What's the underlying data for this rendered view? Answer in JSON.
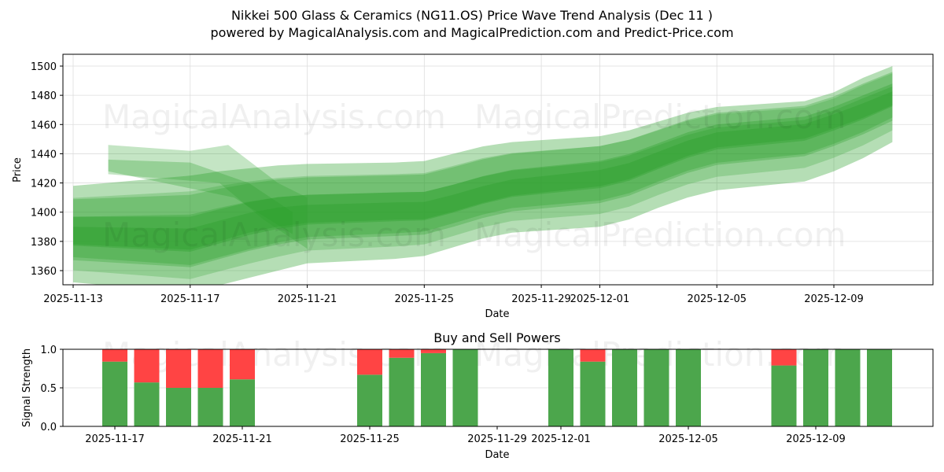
{
  "header": {
    "title": "Nikkei 500 Glass & Ceramics (NG11.OS) Price Wave Trend Analysis (Dec 11 )",
    "subtitle": "powered by MagicalAnalysis.com and MagicalPrediction.com and Predict-Price.com"
  },
  "watermarks": [
    "MagicalAnalysis.com",
    "MagicalPrediction.com"
  ],
  "colors": {
    "band": "#2ca02c",
    "buy": "#4ca64c",
    "sell": "#ff4444",
    "grid": "#dddddd"
  },
  "chart_data": [
    {
      "type": "area",
      "title": "Price Wave Trend Bands",
      "xlabel": "Date",
      "ylabel": "Price",
      "ylim": [
        1350,
        1508
      ],
      "xlim": [
        "2025-11-12.3",
        "2025-12-12.5"
      ],
      "grid": true,
      "x_ticks": [
        "2025-11-13",
        "2025-11-17",
        "2025-11-21",
        "2025-11-25",
        "2025-11-29",
        "2025-12-01",
        "2025-12-05",
        "2025-12-09"
      ],
      "y_ticks": [
        1360,
        1380,
        1400,
        1420,
        1440,
        1460,
        1480,
        1500
      ],
      "x": [
        "2025-11-13",
        "2025-11-17",
        "2025-11-18",
        "2025-11-19",
        "2025-11-20",
        "2025-11-21",
        "2025-11-24",
        "2025-11-25",
        "2025-11-26",
        "2025-11-27",
        "2025-11-28",
        "2025-12-01",
        "2025-12-02",
        "2025-12-03",
        "2025-12-04",
        "2025-12-05",
        "2025-12-08",
        "2025-12-09",
        "2025-12-10",
        "2025-12-11"
      ],
      "series": [
        {
          "name": "center_trend",
          "values": [
            null,
            1382,
            1388,
            1394,
            1398,
            1400,
            1402,
            1402,
            1407,
            1413,
            1418,
            1425,
            1430,
            1438,
            1446,
            1452,
            1458,
            1465,
            1472,
            1480
          ]
        },
        {
          "name": "upper_band",
          "values": [
            1418,
            1425,
            1428,
            1430,
            1432,
            1433,
            1434,
            1435,
            1440,
            1445,
            1448,
            1452,
            1456,
            1462,
            1468,
            1472,
            1476,
            1482,
            1492,
            1500
          ]
        },
        {
          "name": "lower_band",
          "values": [
            1352,
            1345,
            1350,
            1355,
            1360,
            1365,
            1368,
            1370,
            1376,
            1382,
            1386,
            1390,
            1395,
            1403,
            1410,
            1415,
            1421,
            1428,
            1437,
            1448
          ]
        }
      ]
    },
    {
      "type": "bar",
      "title": "Buy and Sell Powers",
      "xlabel": "Date",
      "ylabel": "Signal Strength",
      "ylim": [
        0,
        1.0
      ],
      "y_ticks": [
        0.0,
        0.5,
        1.0
      ],
      "x_ticks": [
        "2025-11-17",
        "2025-11-21",
        "2025-11-25",
        "2025-11-29",
        "2025-12-01",
        "2025-12-05",
        "2025-12-09"
      ],
      "categories": [
        "2025-11-17",
        "2025-11-18",
        "2025-11-19",
        "2025-11-20",
        "2025-11-21",
        "2025-11-25",
        "2025-11-26",
        "2025-11-27",
        "2025-11-28",
        "2025-12-01",
        "2025-12-02",
        "2025-12-03",
        "2025-12-04",
        "2025-12-05",
        "2025-12-08",
        "2025-12-09",
        "2025-12-10",
        "2025-12-11"
      ],
      "series": [
        {
          "name": "Buy",
          "color": "#4ca64c",
          "values": [
            0.84,
            0.57,
            0.5,
            0.5,
            0.61,
            0.67,
            0.89,
            0.95,
            1.0,
            1.0,
            0.84,
            1.0,
            1.0,
            1.0,
            0.79,
            1.0,
            1.0,
            1.0
          ]
        },
        {
          "name": "Sell",
          "color": "#ff4444",
          "values": [
            0.16,
            0.43,
            0.5,
            0.5,
            0.39,
            0.33,
            0.11,
            0.05,
            0.0,
            0.0,
            0.16,
            0.0,
            0.0,
            0.0,
            0.21,
            0.0,
            0.0,
            0.0
          ]
        }
      ],
      "legend": "none"
    }
  ]
}
